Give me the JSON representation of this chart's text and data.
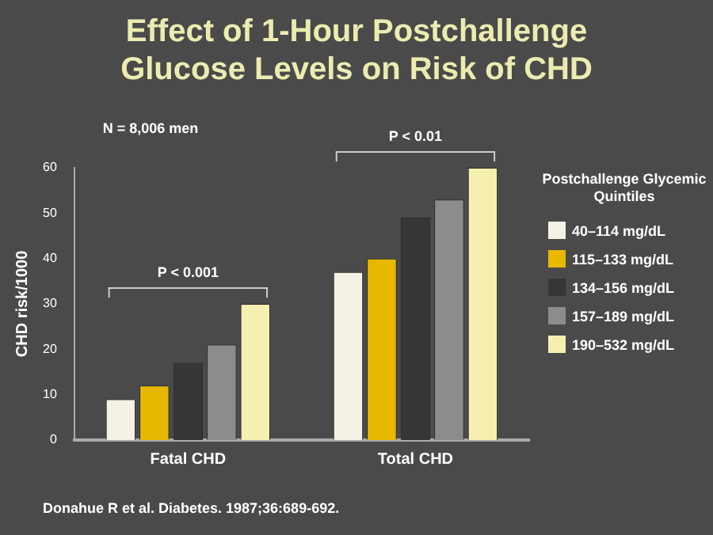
{
  "chart_data": {
    "type": "bar",
    "title": "Effect of 1-Hour Postchallenge Glucose Levels on Risk of CHD",
    "ylabel": "CHD risk/1000",
    "legend_title": "Postchallenge Glycemic Quintiles",
    "categories": [
      "Fatal CHD",
      "Total CHD"
    ],
    "series": [
      {
        "name": "40–114 mg/dL",
        "color": "#f4f2e4",
        "values": [
          9,
          37
        ]
      },
      {
        "name": "115–133 mg/dL",
        "color": "#e8b800",
        "values": [
          12,
          40
        ]
      },
      {
        "name": "134–156 mg/dL",
        "color": "#363636",
        "values": [
          17,
          49
        ]
      },
      {
        "name": "157–189 mg/dL",
        "color": "#8c8c8c",
        "values": [
          21,
          53
        ]
      },
      {
        "name": "190–532 mg/dL",
        "color": "#f6f0b0",
        "values": [
          30,
          60
        ]
      }
    ],
    "ylim": [
      0,
      60
    ],
    "yticks": [
      0,
      10,
      20,
      30,
      40,
      50,
      60
    ],
    "grid": false,
    "legend": "right",
    "annotations": [
      "N = 8,006 men",
      "P < 0.001",
      "P < 0.01",
      "Donahue R et al. Diabetes. 1987;36:689-692."
    ]
  }
}
